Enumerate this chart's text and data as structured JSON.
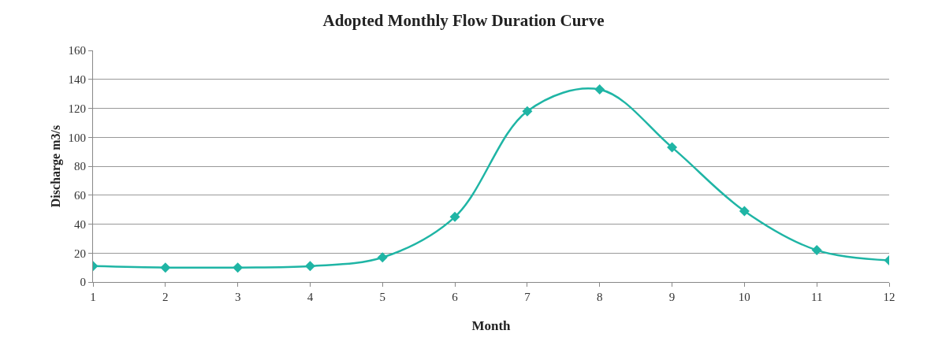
{
  "chart_data": {
    "type": "line",
    "title": "Adopted Monthly Flow Duration Curve",
    "xlabel": "Month",
    "ylabel": "Discharge m3/s",
    "x": [
      1,
      2,
      3,
      4,
      5,
      6,
      7,
      8,
      9,
      10,
      11,
      12
    ],
    "values": [
      11,
      10,
      10,
      11,
      17,
      45,
      118,
      133,
      93,
      49,
      22,
      15
    ],
    "color": "#1fb5a5",
    "xlim": [
      1,
      12
    ],
    "xticks": [
      1,
      2,
      3,
      4,
      5,
      6,
      7,
      8,
      9,
      10,
      11,
      12
    ],
    "ylim": [
      0,
      160
    ],
    "yticks": [
      0,
      20,
      40,
      60,
      80,
      100,
      120,
      140,
      160
    ],
    "grid": "y",
    "marker": "diamond",
    "line_style": "solid"
  }
}
